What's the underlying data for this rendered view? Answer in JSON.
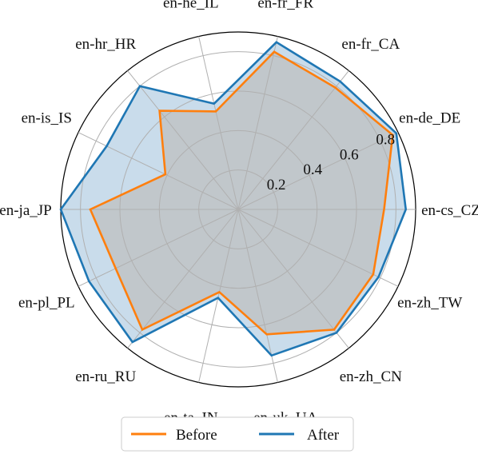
{
  "chart_data": {
    "type": "radar",
    "categories": [
      "en-cs_CZ",
      "en-de_DE",
      "en-fr_CA",
      "en-fr_FR",
      "en-he_IL",
      "en-hr_HR",
      "en-is_IS",
      "en-ja_JP",
      "en-pl_PL",
      "en-ru_RU",
      "en-ta_IN",
      "en-uk_UA",
      "en-zh_CN",
      "en-zh_TW"
    ],
    "radial_ticks": [
      "0.2",
      "0.4",
      "0.6",
      "0.8"
    ],
    "rmax": 0.9,
    "grid": true,
    "legend_position": "bottom",
    "series": [
      {
        "name": "Before",
        "color": "#ff7f0e",
        "fill": "#bdbdbd",
        "values": [
          0.74,
          0.87,
          0.79,
          0.82,
          0.51,
          0.64,
          0.41,
          0.75,
          0.69,
          0.78,
          0.43,
          0.65,
          0.78,
          0.76
        ]
      },
      {
        "name": "After",
        "color": "#1f77b4",
        "fill": "#bfd6e8",
        "values": [
          0.85,
          0.89,
          0.83,
          0.87,
          0.55,
          0.8,
          0.74,
          0.9,
          0.84,
          0.86,
          0.46,
          0.76,
          0.8,
          0.79
        ]
      }
    ]
  }
}
